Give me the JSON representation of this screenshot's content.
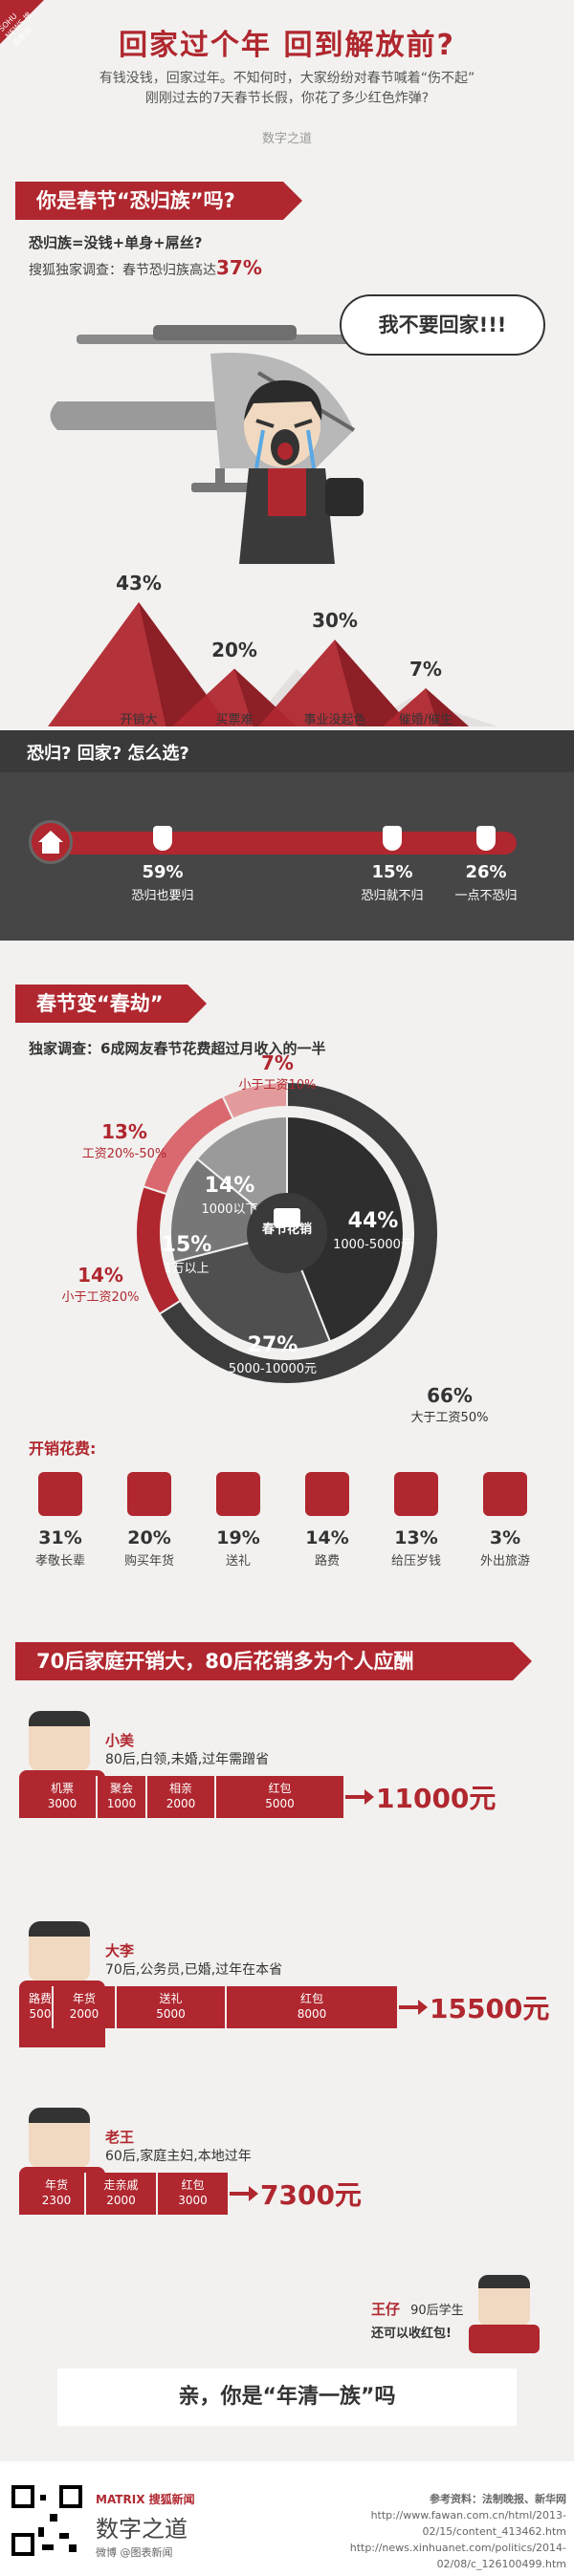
{
  "corner_tag": "SOHU NEWS 搜狐新闻",
  "header": {
    "title": "回家过个年 回到解放前?",
    "intro_line1": "有钱没钱，回家过年。不知何时，大家纷纷对春节喊着“伤不起”",
    "intro_line2": "刚刚过去的7天春节长假，你花了多少红色炸弹?",
    "signature": "数字之道"
  },
  "section1": {
    "banner": "你是春节“恐归族”吗?",
    "definition": "恐归族=没钱+单身+屌丝?",
    "survey_prefix": "搜狐独家调查：春节恐归族高达",
    "survey_value": "37%",
    "speech": "我不要回家!!!",
    "reasons": [
      {
        "pct": "43%",
        "label": "开销大",
        "value": 43
      },
      {
        "pct": "20%",
        "label": "买票难",
        "value": 20
      },
      {
        "pct": "30%",
        "label": "事业没起色",
        "value": 30
      },
      {
        "pct": "7%",
        "label": "催婚/催生",
        "value": 7
      }
    ]
  },
  "choice": {
    "banner": "恐归? 回家? 怎么选?",
    "options": [
      {
        "pct": "59%",
        "label": "恐归也要归",
        "value": 59
      },
      {
        "pct": "15%",
        "label": "恐归就不归",
        "value": 15
      },
      {
        "pct": "26%",
        "label": "一点不恐归",
        "value": 26
      }
    ]
  },
  "section2": {
    "banner": "春节变“春劫”",
    "survey": "独家调查：6成网友春节花费超过月收入的一半",
    "outer_ring": [
      {
        "pct": "7%",
        "label": "小于工资10%",
        "value": 7
      },
      {
        "pct": "13%",
        "label": "工资20%-50%",
        "value": 13
      },
      {
        "pct": "14%",
        "label": "小于工资20%",
        "value": 14
      },
      {
        "pct": "66%",
        "label": "大于工资50%",
        "value": 66
      }
    ],
    "inner_ring": [
      {
        "pct": "44%",
        "label": "1000-5000元",
        "value": 44
      },
      {
        "pct": "27%",
        "label": "5000-10000元",
        "value": 27
      },
      {
        "pct": "15%",
        "label": "1万以上",
        "value": 15
      },
      {
        "pct": "14%",
        "label": "1000以下",
        "value": 14
      }
    ],
    "center_label": "春节花销",
    "costs_title": "开销花费:",
    "costs": [
      {
        "pct": "31%",
        "label": "孝敬长辈",
        "icon": "wine-glass-icon"
      },
      {
        "pct": "20%",
        "label": "购买年货",
        "icon": "lantern-icon"
      },
      {
        "pct": "19%",
        "label": "送礼",
        "icon": "gift-icon"
      },
      {
        "pct": "14%",
        "label": "路费",
        "icon": "ticket-icon"
      },
      {
        "pct": "13%",
        "label": "给压岁钱",
        "icon": "red-envelope-icon"
      },
      {
        "pct": "3%",
        "label": "外出旅游",
        "icon": "plane-icon"
      }
    ]
  },
  "section3": {
    "banner": "70后家庭开销大，80后花销多为个人应酬",
    "people": [
      {
        "name": "小美",
        "info": "80后,白领,未婚,过年需蹭省",
        "items": [
          {
            "label": "机票",
            "value": "3000"
          },
          {
            "label": "聚会",
            "value": "1000"
          },
          {
            "label": "相亲",
            "value": "2000"
          },
          {
            "label": "红包",
            "value": "5000"
          }
        ],
        "total": "11000元"
      },
      {
        "name": "大李",
        "info": "70后,公务员,已婚,过年在本省",
        "items": [
          {
            "label": "路费",
            "value": "500"
          },
          {
            "label": "年货",
            "value": "2000"
          },
          {
            "label": "送礼",
            "value": "5000"
          },
          {
            "label": "红包",
            "value": "8000"
          }
        ],
        "total": "15500元"
      },
      {
        "name": "老王",
        "info": "60后,家庭主妇,本地过年",
        "items": [
          {
            "label": "年货",
            "value": "2300"
          },
          {
            "label": "走亲戚",
            "value": "2000"
          },
          {
            "label": "红包",
            "value": "3000"
          }
        ],
        "total": "7300元"
      }
    ],
    "kid": {
      "name": "王仔",
      "info": "90后学生",
      "line2": "还可以收红包!"
    },
    "closing": "亲，你是“年清一族”吗"
  },
  "footer": {
    "brand_top": "MATRIX 搜狐新闻",
    "brand": "数字之道",
    "weibo": "微博 @图表新闻",
    "sources_title": "参考资料：法制晚报、新华网",
    "url1": "http://www.fawan.com.cn/html/2013-02/15/content_413462.htm",
    "url2": "http://news.xinhuanet.com/politics/2014-02/08/c_126100499.htm"
  },
  "colors": {
    "accent": "#b0272f",
    "dark": "#3c3c3c",
    "bg": "#f2f1ef"
  }
}
